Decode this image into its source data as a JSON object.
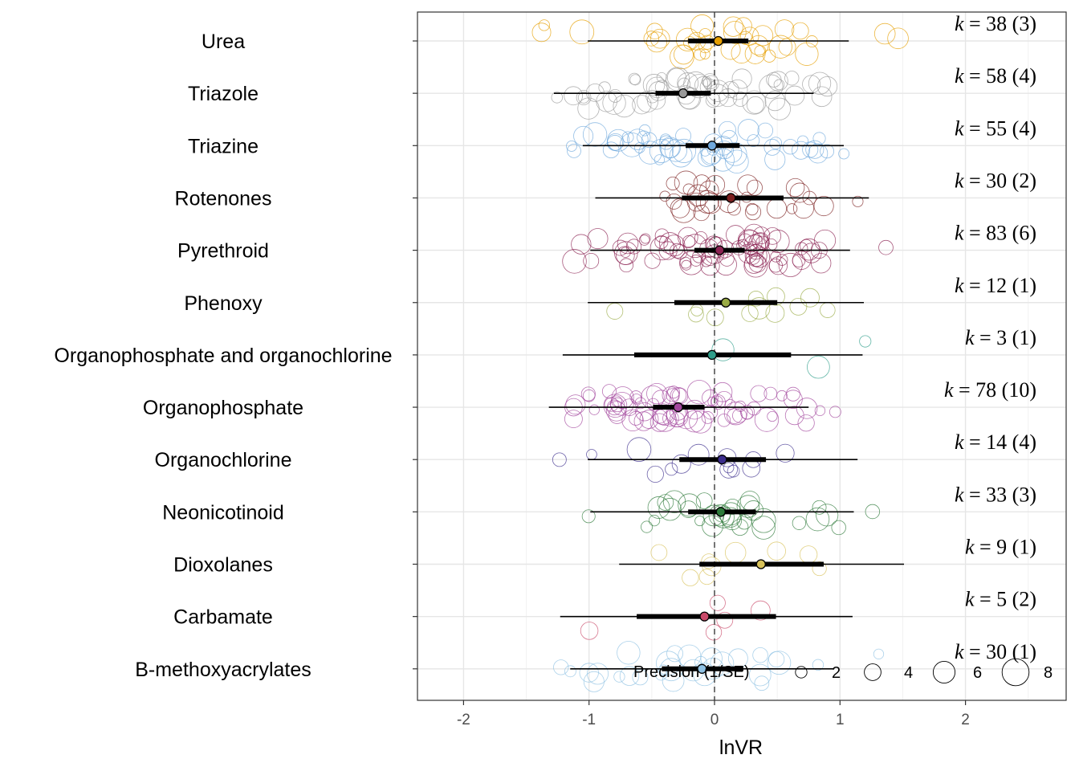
{
  "chart_data": {
    "type": "scatter",
    "subtype": "orchard plot",
    "xlabel": "lnVR",
    "xlim": [
      -2.4,
      2.8
    ],
    "xticks": [
      -2,
      -1,
      0,
      1,
      2
    ],
    "xtick_labels": [
      "-2",
      "-1",
      "0",
      "1",
      "2"
    ],
    "reference_line": 0,
    "grid": true,
    "legend": {
      "title": "Precision (1/SE)",
      "placement": "bottom-inside",
      "sizes": [
        2,
        4,
        6,
        8
      ],
      "labels": [
        "2",
        "4",
        "6",
        "8"
      ]
    },
    "groups": [
      {
        "name": "Urea",
        "k_label": "k = 38 (3)",
        "estimate": 0.03,
        "ci": [
          -0.21,
          0.27
        ],
        "pi": [
          -1.01,
          1.07
        ],
        "color": "#E69F00"
      },
      {
        "name": "Triazole",
        "k_label": "k = 58 (4)",
        "estimate": -0.25,
        "ci": [
          -0.47,
          -0.03
        ],
        "pi": [
          -1.28,
          0.79
        ],
        "color": "#999999"
      },
      {
        "name": "Triazine",
        "k_label": "k = 55 (4)",
        "estimate": -0.02,
        "ci": [
          -0.23,
          0.2
        ],
        "pi": [
          -1.05,
          1.03
        ],
        "color": "#6FA8DC"
      },
      {
        "name": "Rotenones",
        "k_label": "k = 30 (2)",
        "estimate": 0.13,
        "ci": [
          -0.26,
          0.55
        ],
        "pi": [
          -0.95,
          1.23
        ],
        "color": "#7B1F1F"
      },
      {
        "name": "Pyrethroid",
        "k_label": "k = 83 (6)",
        "estimate": 0.04,
        "ci": [
          -0.16,
          0.24
        ],
        "pi": [
          -0.99,
          1.08
        ],
        "color": "#8B2252"
      },
      {
        "name": "Phenoxy",
        "k_label": "k = 12 (1)",
        "estimate": 0.09,
        "ci": [
          -0.32,
          0.5
        ],
        "pi": [
          -1.01,
          1.19
        ],
        "color": "#9AAB45"
      },
      {
        "name": "Organophosphate and organochlorine",
        "k_label": "k = 3 (1)",
        "estimate": -0.02,
        "ci": [
          -0.64,
          0.61
        ],
        "pi": [
          -1.21,
          1.18
        ],
        "color": "#2E9E8A"
      },
      {
        "name": "Organophosphate",
        "k_label": "k = 78 (10)",
        "estimate": -0.29,
        "ci": [
          -0.49,
          -0.08
        ],
        "pi": [
          -1.32,
          0.75
        ],
        "color": "#A3479E"
      },
      {
        "name": "Organochlorine",
        "k_label": "k = 14 (4)",
        "estimate": 0.06,
        "ci": [
          -0.28,
          0.41
        ],
        "pi": [
          -1.01,
          1.14
        ],
        "color": "#3B2C8C"
      },
      {
        "name": "Neonicotinoid",
        "k_label": "k = 33 (3)",
        "estimate": 0.05,
        "ci": [
          -0.21,
          0.33
        ],
        "pi": [
          -0.99,
          1.11
        ],
        "color": "#2D7A3A"
      },
      {
        "name": "Dioxolanes",
        "k_label": "k = 9 (1)",
        "estimate": 0.37,
        "ci": [
          -0.12,
          0.87
        ],
        "pi": [
          -0.76,
          1.51
        ],
        "color": "#D8C25A"
      },
      {
        "name": "Carbamate",
        "k_label": "k = 5 (2)",
        "estimate": -0.08,
        "ci": [
          -0.62,
          0.49
        ],
        "pi": [
          -1.23,
          1.1
        ],
        "color": "#C94A6A"
      },
      {
        "name": "B-methoxyacrylates",
        "k_label": "k = 30 (1)",
        "estimate": -0.1,
        "ci": [
          -0.42,
          0.23
        ],
        "pi": [
          -1.15,
          0.95
        ],
        "color": "#8FC1E3"
      }
    ]
  }
}
